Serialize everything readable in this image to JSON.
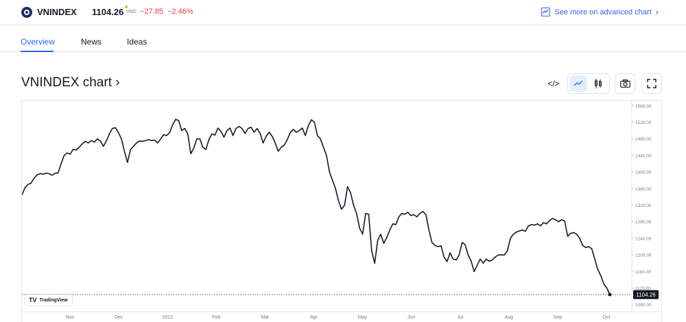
{
  "header": {
    "symbol": "VNINDEX",
    "price": "1104.26",
    "currency": "VND",
    "change": "−27.85",
    "change_pct": "−2.46%",
    "advanced_link": "See more on advanced chart"
  },
  "tabs": [
    {
      "label": "Overview",
      "active": true
    },
    {
      "label": "News",
      "active": false
    },
    {
      "label": "Ideas",
      "active": false
    }
  ],
  "chart_section": {
    "title": "VNINDEX chart ›",
    "toolbar": [
      {
        "name": "embed-code-icon",
        "glyph": "</>"
      },
      {
        "name": "line-chart-icon",
        "selected": true
      },
      {
        "name": "candles-icon"
      },
      {
        "name": "camera-icon"
      },
      {
        "name": "fullscreen-icon"
      }
    ],
    "badge": "TradingView"
  },
  "colors": {
    "accent": "#2962ff",
    "negative": "#f23645",
    "line": "#131722",
    "selected_bg": "#e3effd"
  },
  "chart_data": {
    "type": "line",
    "title": "",
    "x_ticks": [
      "Nov",
      "Dec",
      "2022",
      "Feb",
      "Mar",
      "Apr",
      "May",
      "Jun",
      "Jul",
      "Aug",
      "Sep",
      "Oct"
    ],
    "y_ticks": [
      1080,
      1120,
      1160,
      1200,
      1240,
      1280,
      1320,
      1360,
      1400,
      1440,
      1480,
      1520,
      1560
    ],
    "ylim": [
      1063,
      1572
    ],
    "last_value": "1104.26",
    "grid": false,
    "series": [
      {
        "values": [
          1345,
          1362,
          1370,
          1373,
          1385,
          1393,
          1396,
          1395,
          1397,
          1396,
          1392,
          1397,
          1398,
          1420,
          1440,
          1446,
          1443,
          1455,
          1453,
          1460,
          1468,
          1474,
          1470,
          1476,
          1472,
          1480,
          1475,
          1462,
          1475,
          1492,
          1505,
          1507,
          1495,
          1480,
          1450,
          1423,
          1454,
          1462,
          1470,
          1475,
          1474,
          1476,
          1478,
          1476,
          1477,
          1470,
          1480,
          1490,
          1488,
          1495,
          1514,
          1527,
          1524,
          1500,
          1505,
          1492,
          1444,
          1458,
          1480,
          1480,
          1460,
          1454,
          1478,
          1492,
          1489,
          1506,
          1498,
          1484,
          1500,
          1506,
          1488,
          1505,
          1510,
          1505,
          1493,
          1505,
          1508,
          1496,
          1505,
          1493,
          1470,
          1486,
          1496,
          1486,
          1470,
          1450,
          1460,
          1465,
          1478,
          1495,
          1503,
          1496,
          1500,
          1506,
          1488,
          1512,
          1526,
          1520,
          1488,
          1480,
          1460,
          1440,
          1400,
          1380,
          1360,
          1330,
          1310,
          1320,
          1365,
          1350,
          1320,
          1300,
          1265,
          1250,
          1300,
          1298,
          1210,
          1180,
          1235,
          1250,
          1228,
          1242,
          1260,
          1275,
          1273,
          1292,
          1300,
          1298,
          1303,
          1295,
          1297,
          1292,
          1300,
          1305,
          1297,
          1260,
          1230,
          1223,
          1220,
          1222,
          1195,
          1184,
          1205,
          1190,
          1188,
          1200,
          1230,
          1225,
          1200,
          1185,
          1160,
          1175,
          1190,
          1180,
          1190,
          1185,
          1188,
          1195,
          1200,
          1200,
          1200,
          1210,
          1240,
          1250,
          1255,
          1258,
          1260,
          1257,
          1270,
          1273,
          1272,
          1275,
          1270,
          1278,
          1275,
          1283,
          1288,
          1285,
          1280,
          1285,
          1282,
          1245,
          1252,
          1254,
          1250,
          1240,
          1223,
          1218,
          1220,
          1215,
          1190,
          1165,
          1150,
          1130,
          1120,
          1104.26
        ]
      }
    ]
  }
}
